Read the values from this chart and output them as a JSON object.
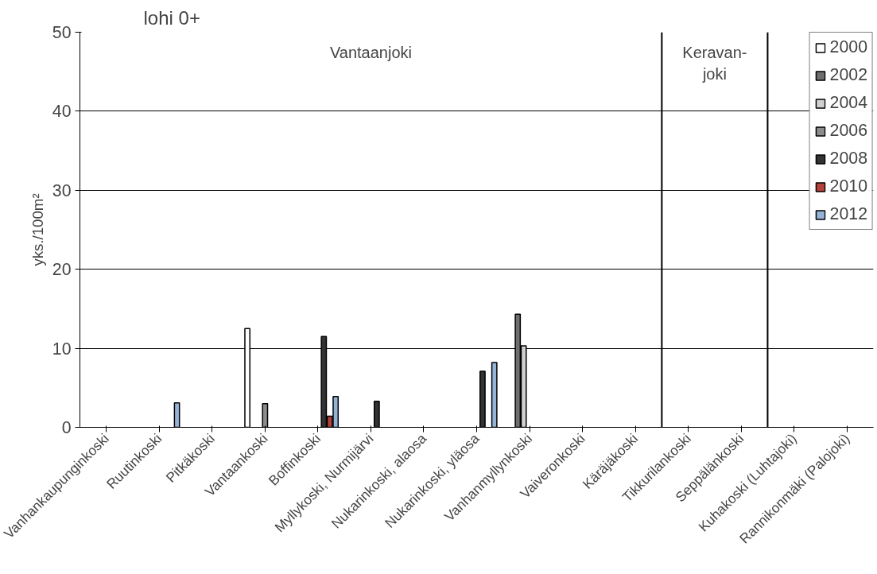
{
  "chart_data": {
    "type": "bar",
    "title": "lohi 0+",
    "ylabel": "yks./100m²",
    "categories": [
      "Vanhankaupunginkoski",
      "Ruutinkoski",
      "Pitkäkoski",
      "Vantaankoski",
      "Boffinkoski",
      "Myllykoski, Nurmijärvi",
      "Nukarinkoski, alaosa",
      "Nukarinkoski, yläosa",
      "Vanhanmyllynkoski",
      "Vaiveronkoski",
      "Käräjäkoski",
      "Tikkurilankoski",
      "Seppälänkoski",
      "Kuhakoski (Luhtajoki)",
      "Rannikonmäki (Palojoki)"
    ],
    "series": [
      {
        "name": "2000",
        "color": "#ffffff",
        "values": [
          null,
          null,
          null,
          12.5,
          null,
          null,
          null,
          null,
          null,
          null,
          null,
          null,
          null,
          null,
          null
        ]
      },
      {
        "name": "2002",
        "color": "#6e6e6e",
        "values": [
          null,
          null,
          null,
          null,
          null,
          null,
          null,
          null,
          14.3,
          null,
          null,
          null,
          null,
          null,
          null
        ]
      },
      {
        "name": "2004",
        "color": "#d0d0d0",
        "values": [
          null,
          null,
          null,
          null,
          null,
          null,
          null,
          null,
          10.3,
          null,
          null,
          null,
          null,
          null,
          null
        ]
      },
      {
        "name": "2006",
        "color": "#8c8c8c",
        "values": [
          null,
          null,
          null,
          3.0,
          null,
          null,
          null,
          null,
          null,
          null,
          null,
          null,
          null,
          null,
          null
        ]
      },
      {
        "name": "2008",
        "color": "#333333",
        "values": [
          null,
          null,
          null,
          null,
          11.5,
          3.3,
          null,
          7.1,
          null,
          null,
          null,
          null,
          null,
          null,
          null
        ]
      },
      {
        "name": "2010",
        "color": "#b5413b",
        "values": [
          null,
          null,
          null,
          null,
          1.4,
          null,
          null,
          null,
          null,
          null,
          null,
          null,
          null,
          null,
          null
        ]
      },
      {
        "name": "2012",
        "color": "#95b3d7",
        "values": [
          null,
          3.1,
          null,
          null,
          3.9,
          null,
          null,
          8.2,
          null,
          null,
          null,
          null,
          null,
          null,
          null
        ]
      }
    ],
    "ylim": [
      0,
      50
    ],
    "yticks": [
      0,
      10,
      20,
      30,
      40,
      50
    ],
    "grid": "y",
    "legend": "top right",
    "annotations": [
      "Vantaanjoki",
      "Keravan-\njoki"
    ]
  }
}
